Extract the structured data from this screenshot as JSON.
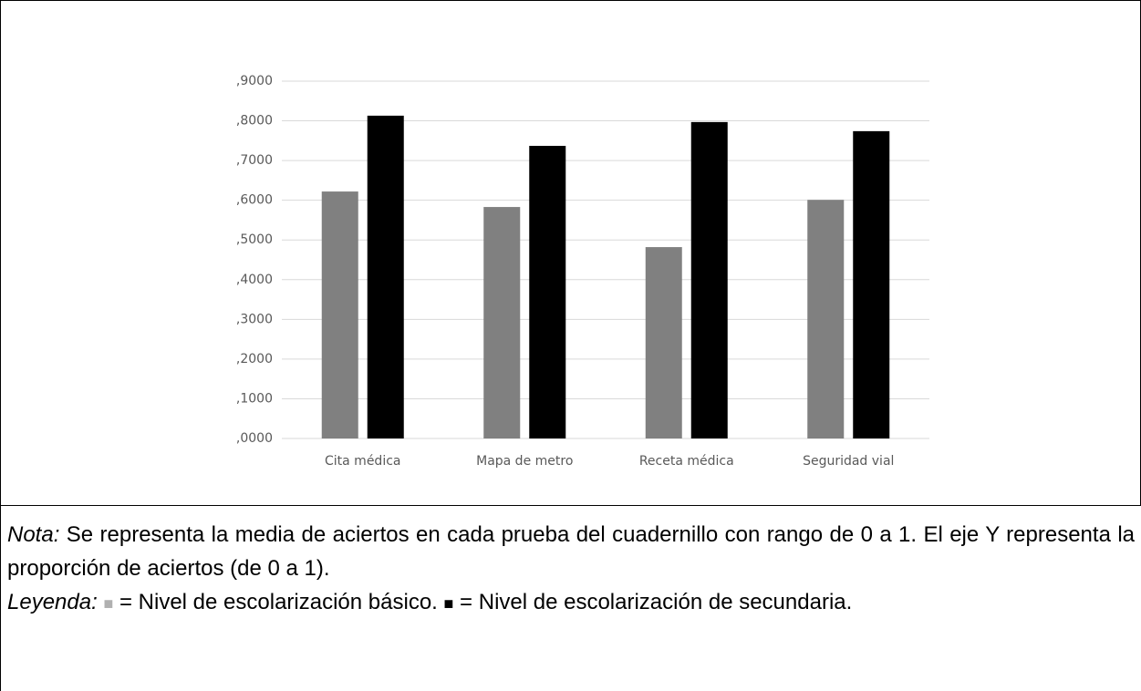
{
  "chart_data": {
    "type": "bar",
    "categories": [
      "Cita médica",
      "Mapa de metro",
      "Receta médica",
      "Seguridad vial"
    ],
    "series": [
      {
        "color": "#808080",
        "values": [
          0.622,
          0.583,
          0.482,
          0.601
        ]
      },
      {
        "color": "#000000",
        "values": [
          0.813,
          0.737,
          0.797,
          0.774
        ]
      }
    ],
    "ylim": [
      0,
      0.9
    ],
    "yticks": [
      {
        "value": 0,
        "label": ",0000"
      },
      {
        "value": 0.1,
        "label": ",1000"
      },
      {
        "value": 0.2,
        "label": ",2000"
      },
      {
        "value": 0.3,
        "label": ",3000"
      },
      {
        "value": 0.4,
        "label": ",4000"
      },
      {
        "value": 0.5,
        "label": ",5000"
      },
      {
        "value": 0.6,
        "label": ",6000"
      },
      {
        "value": 0.7,
        "label": ",7000"
      },
      {
        "value": 0.8,
        "label": ",8000"
      },
      {
        "value": 0.9,
        "label": ",9000"
      }
    ],
    "grid": true
  },
  "note": {
    "label": "Nota:",
    "text": "Se representa la media de aciertos en cada prueba del cuadernillo con rango de 0 a 1. El eje Y representa la proporción de aciertos (de 0 a 1)."
  },
  "legend": {
    "label": "Leyenda:",
    "items": [
      {
        "symbol": "■",
        "color": "#b0b0b0",
        "text": "= Nivel de escolarización básico."
      },
      {
        "symbol": "■",
        "color": "#000000",
        "text": "= Nivel de escolarización de secundaria."
      }
    ]
  }
}
